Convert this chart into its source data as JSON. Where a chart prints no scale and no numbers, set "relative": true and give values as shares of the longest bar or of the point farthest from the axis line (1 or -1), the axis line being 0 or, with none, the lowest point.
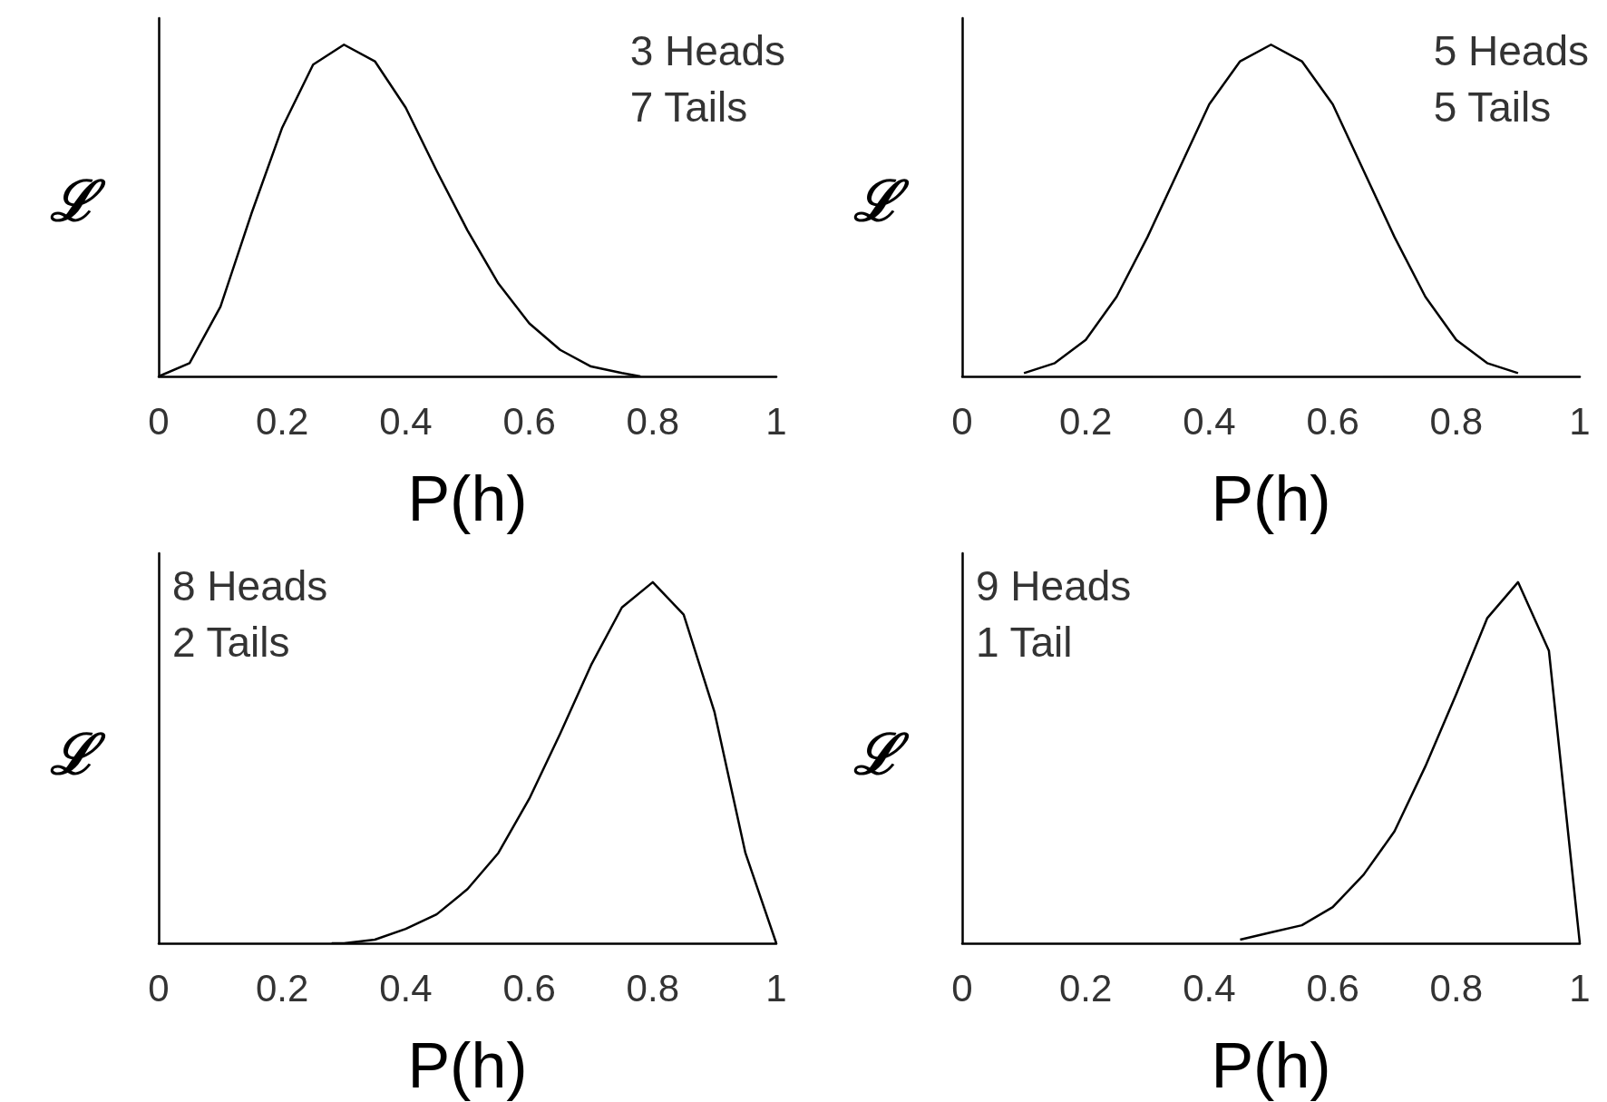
{
  "chart_data": [
    {
      "type": "line",
      "relative": true,
      "xlabel": "P(h)",
      "ylabel": "ℒ",
      "annotations": [
        "3 Heads\n7 Tails"
      ],
      "xlim": [
        0,
        1
      ],
      "xticks": [
        0,
        0.2,
        0.4,
        0.6,
        0.8,
        1
      ],
      "tick_labels": "x",
      "grid": false,
      "marker": "none",
      "line_style": "solid",
      "series": [
        {
          "color": "#000000",
          "x": [
            0,
            0.05,
            0.1,
            0.15,
            0.2,
            0.25,
            0.3,
            0.35,
            0.4,
            0.45,
            0.5,
            0.55,
            0.6,
            0.65,
            0.7,
            0.75,
            0.78
          ],
          "values": [
            0,
            0.04,
            0.21,
            0.49,
            0.75,
            0.94,
            1,
            0.95,
            0.81,
            0.62,
            0.44,
            0.28,
            0.16,
            0.08,
            0.03,
            0.01,
            0
          ]
        }
      ]
    },
    {
      "type": "line",
      "relative": true,
      "xlabel": "P(h)",
      "ylabel": "ℒ",
      "annotations": [
        "5 Heads\n5 Tails"
      ],
      "xlim": [
        0,
        1
      ],
      "xticks": [
        0,
        0.2,
        0.4,
        0.6,
        0.8,
        1
      ],
      "tick_labels": "x",
      "grid": false,
      "marker": "none",
      "line_style": "solid",
      "series": [
        {
          "color": "#000000",
          "x": [
            0.1,
            0.15,
            0.2,
            0.25,
            0.3,
            0.35,
            0.4,
            0.45,
            0.5,
            0.55,
            0.6,
            0.65,
            0.7,
            0.75,
            0.8,
            0.85,
            0.9
          ],
          "values": [
            0.01,
            0.04,
            0.11,
            0.24,
            0.42,
            0.62,
            0.82,
            0.95,
            1,
            0.95,
            0.82,
            0.62,
            0.42,
            0.24,
            0.11,
            0.04,
            0.01
          ]
        }
      ]
    },
    {
      "type": "line",
      "relative": true,
      "xlabel": "P(h)",
      "ylabel": "ℒ",
      "annotations": [
        "8 Heads\n2 Tails"
      ],
      "xlim": [
        0,
        1
      ],
      "xticks": [
        0,
        0.2,
        0.4,
        0.6,
        0.8,
        1
      ],
      "tick_labels": "x",
      "grid": false,
      "marker": "none",
      "line_style": "solid",
      "series": [
        {
          "color": "#000000",
          "x": [
            0.28,
            0.3,
            0.35,
            0.4,
            0.45,
            0.5,
            0.55,
            0.6,
            0.65,
            0.7,
            0.75,
            0.8,
            0.85,
            0.9,
            0.95,
            1
          ],
          "values": [
            0,
            0,
            0.01,
            0.04,
            0.08,
            0.15,
            0.25,
            0.4,
            0.58,
            0.77,
            0.93,
            1,
            0.91,
            0.64,
            0.25,
            0
          ]
        }
      ]
    },
    {
      "type": "line",
      "relative": true,
      "xlabel": "P(h)",
      "ylabel": "ℒ",
      "annotations": [
        "9 Heads\n1 Tail"
      ],
      "xlim": [
        0,
        1
      ],
      "xticks": [
        0,
        0.2,
        0.4,
        0.6,
        0.8,
        1
      ],
      "tick_labels": "x",
      "grid": false,
      "marker": "none",
      "line_style": "solid",
      "series": [
        {
          "color": "#000000",
          "x": [
            0.45,
            0.5,
            0.55,
            0.6,
            0.65,
            0.7,
            0.75,
            0.8,
            0.85,
            0.9,
            0.95,
            1
          ],
          "values": [
            0.01,
            0.03,
            0.05,
            0.1,
            0.19,
            0.31,
            0.49,
            0.69,
            0.9,
            1,
            0.81,
            0
          ]
        }
      ]
    }
  ]
}
